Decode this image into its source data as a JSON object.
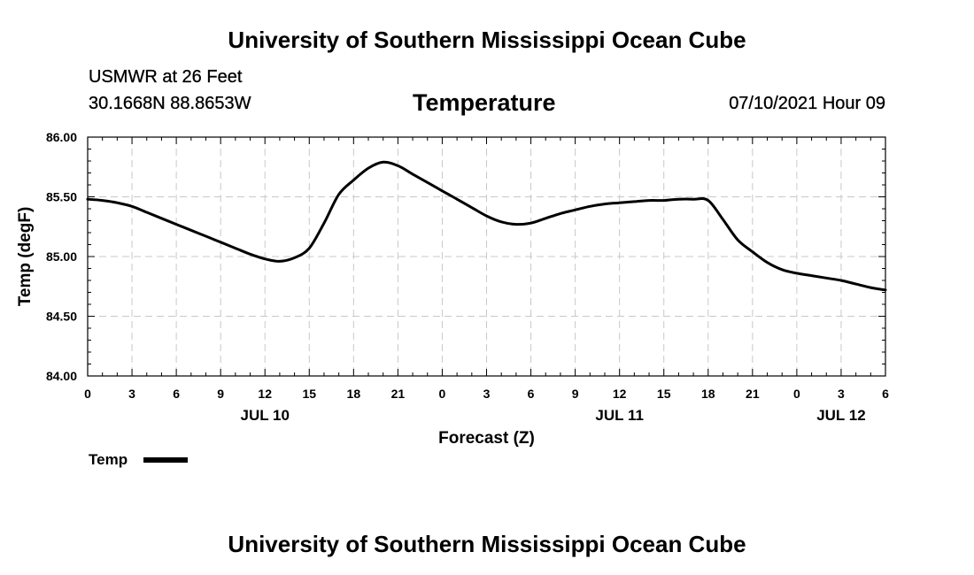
{
  "header": {
    "title": "University of Southern Mississippi Ocean Cube",
    "station": "USMWR at 26 Feet",
    "coordinates": "30.1668N  88.8653W",
    "datetime": "07/10/2021 Hour 09"
  },
  "footer": {
    "title": "University of Southern Mississippi Ocean Cube"
  },
  "legend": {
    "label": "Temp"
  },
  "colors": {
    "line": "#000000",
    "grid": "#c8c8c8",
    "axis": "#000000"
  },
  "chart_data": {
    "type": "line",
    "title": "Temperature",
    "xlabel": "Forecast (Z)",
    "ylabel": "Temp (degF)",
    "xlim": [
      0,
      54
    ],
    "ylim": [
      84.0,
      86.0
    ],
    "y_ticks": [
      "84.00",
      "84.50",
      "85.00",
      "85.50",
      "86.00"
    ],
    "y_tick_values": [
      84.0,
      84.5,
      85.0,
      85.5,
      86.0
    ],
    "x_tick_hours": [
      0,
      3,
      6,
      9,
      12,
      15,
      18,
      21,
      24,
      27,
      30,
      33,
      36,
      39,
      42,
      45,
      48,
      51,
      54
    ],
    "x_tick_labels": [
      "0",
      "3",
      "6",
      "9",
      "12",
      "15",
      "18",
      "21",
      "0",
      "3",
      "6",
      "9",
      "12",
      "15",
      "18",
      "21",
      "0",
      "3",
      "6"
    ],
    "date_labels": [
      {
        "hour": 12,
        "label": "JUL 10"
      },
      {
        "hour": 36,
        "label": "JUL 11"
      },
      {
        "hour": 51,
        "label": "JUL 12"
      }
    ],
    "grid": true,
    "series": [
      {
        "name": "Temp",
        "x": [
          0,
          1,
          2,
          3,
          4,
          5,
          6,
          7,
          8,
          9,
          10,
          11,
          12,
          13,
          14,
          15,
          16,
          17,
          18,
          19,
          20,
          21,
          22,
          23,
          24,
          25,
          26,
          27,
          28,
          29,
          30,
          31,
          32,
          33,
          34,
          35,
          36,
          37,
          38,
          39,
          40,
          41,
          42,
          43,
          44,
          45,
          46,
          47,
          48,
          49,
          50,
          51,
          52,
          53,
          54
        ],
        "values": [
          85.48,
          85.47,
          85.45,
          85.42,
          85.37,
          85.32,
          85.27,
          85.22,
          85.17,
          85.12,
          85.07,
          85.02,
          84.98,
          84.96,
          84.99,
          85.07,
          85.28,
          85.52,
          85.64,
          85.74,
          85.79,
          85.76,
          85.69,
          85.62,
          85.55,
          85.48,
          85.41,
          85.34,
          85.29,
          85.27,
          85.28,
          85.32,
          85.36,
          85.39,
          85.42,
          85.44,
          85.45,
          85.46,
          85.47,
          85.47,
          85.48,
          85.48,
          85.47,
          85.31,
          85.14,
          85.04,
          84.95,
          84.89,
          84.86,
          84.84,
          84.82,
          84.8,
          84.77,
          84.74,
          84.72
        ]
      }
    ]
  }
}
